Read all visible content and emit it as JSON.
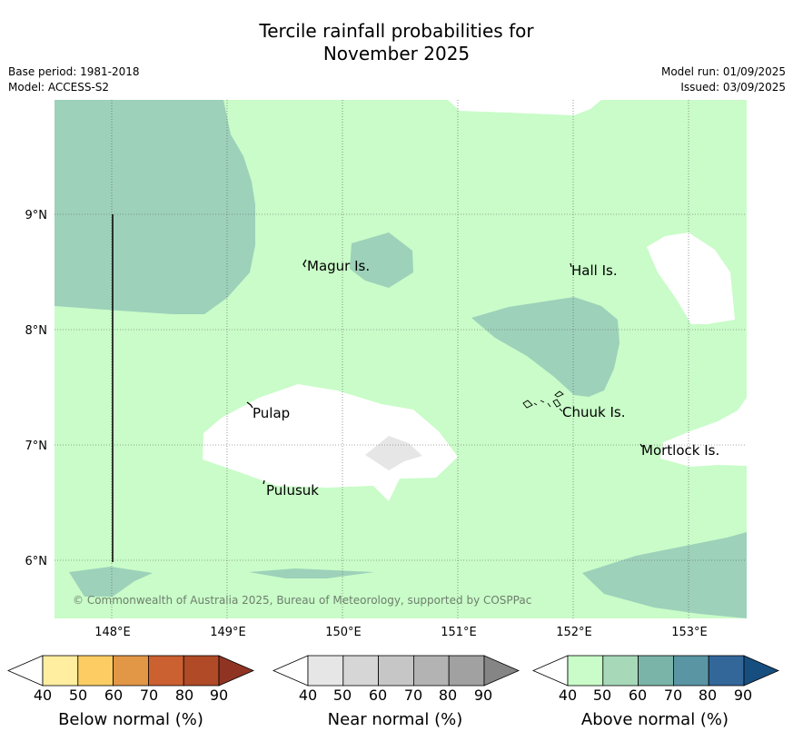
{
  "header": {
    "title_line1": "Tercile rainfall probabilities for",
    "title_line2": "November 2025",
    "base_period": "Base period: 1981-2018",
    "model": "Model: ACCESS-S2",
    "model_run": "Model run: 01/09/2025",
    "issued": "Issued: 03/09/2025"
  },
  "map": {
    "lon_ticks": [
      "148°E",
      "149°E",
      "150°E",
      "151°E",
      "152°E",
      "153°E"
    ],
    "lat_ticks": [
      "9°N",
      "8°N",
      "7°N",
      "6°N"
    ],
    "places": [
      "Magur Is.",
      "Hall Is.",
      "Pulap",
      "Chuuk Is.",
      "Mortlock Is.",
      "Pulusuk"
    ],
    "copyright": "© Commonwealth of Australia 2025, Bureau of Meteorology, supported by COSPPac",
    "colors": {
      "above_40_50": "#c9fcc8",
      "above_50_60": "#9dd1ba",
      "near_40_50": "#e6e6e6",
      "no_dominant": "#ffffff"
    }
  },
  "legends": [
    {
      "label": "Below normal (%)",
      "ticks": [
        "40",
        "50",
        "60",
        "70",
        "80",
        "90"
      ],
      "colors": [
        "#ffeda0",
        "#fdcd63",
        "#e29747",
        "#cb6031",
        "#b04a27",
        "#8f3423"
      ]
    },
    {
      "label": "Near normal (%)",
      "ticks": [
        "40",
        "50",
        "60",
        "70",
        "80",
        "90"
      ],
      "colors": [
        "#e6e6e6",
        "#d6d6d6",
        "#c6c6c6",
        "#b3b3b3",
        "#a1a1a1",
        "#858585"
      ]
    },
    {
      "label": "Above normal (%)",
      "ticks": [
        "40",
        "50",
        "60",
        "70",
        "80",
        "90"
      ],
      "colors": [
        "#c9fcc8",
        "#a7d9b9",
        "#7ab4a8",
        "#5a95a3",
        "#33679a",
        "#174e80"
      ]
    }
  ]
}
